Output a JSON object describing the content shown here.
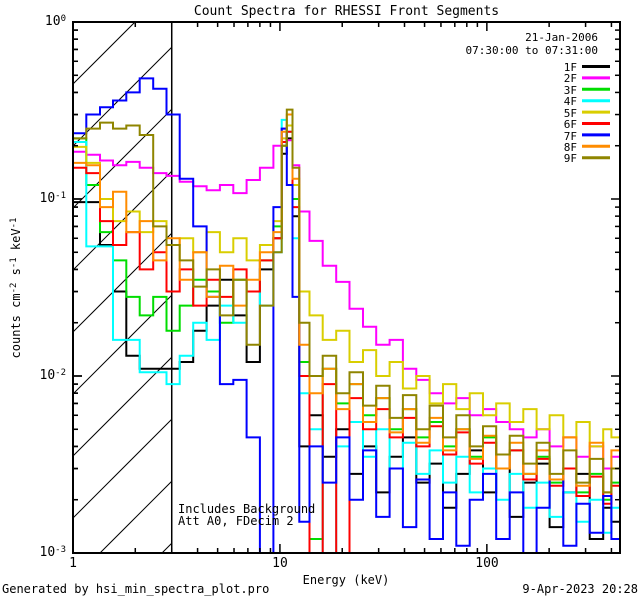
{
  "title": "Count Spectra for RHESSI Front Segments",
  "header": {
    "date": "21-Jan-2006",
    "time_range": "07:30:00 to 07:31:00"
  },
  "legend": {
    "entries": [
      {
        "label": "1F"
      },
      {
        "label": "2F"
      },
      {
        "label": "3F"
      },
      {
        "label": "4F"
      },
      {
        "label": "5F"
      },
      {
        "label": "6F"
      },
      {
        "label": "7F"
      },
      {
        "label": "8F"
      },
      {
        "label": "9F"
      }
    ]
  },
  "axes": {
    "x": {
      "label": "Energy (keV)",
      "scale": "log",
      "range": [
        1,
        440
      ],
      "ticks": [
        "1",
        "10",
        "100"
      ]
    },
    "y": {
      "scale": "log",
      "range": [
        0.001,
        1
      ],
      "label_parts": [
        {
          "t": "counts cm"
        },
        {
          "t": "-2",
          "sup": true
        },
        {
          "t": " s"
        },
        {
          "t": "-1",
          "sup": true
        },
        {
          "t": " keV"
        },
        {
          "t": "-1",
          "sup": true
        }
      ],
      "ticks": [
        {
          "base": "10",
          "exp": "0",
          "value": 1
        },
        {
          "base": "10",
          "exp": "-1",
          "value": 0.1
        },
        {
          "base": "10",
          "exp": "-2",
          "value": 0.01
        },
        {
          "base": "10",
          "exp": "-3",
          "value": 0.001
        }
      ]
    }
  },
  "annotations": [
    "Includes Background",
    "Att A0, FDecim 2"
  ],
  "hatch_region": {
    "x_start": 1,
    "x_end": 3
  },
  "footer": {
    "left": "Generated by hsi_min_spectra_plot.pro",
    "right": "9-Apr-2023 20:28"
  },
  "chart_data": {
    "type": "line",
    "style": "histogram-step",
    "title": "Count Spectra for RHESSI Front Segments",
    "xlabel": "Energy (keV)",
    "ylabel": "counts cm^-2 s^-1 keV^-1",
    "xscale": "log",
    "yscale": "log",
    "xlim": [
      1,
      440
    ],
    "ylim": [
      0.001,
      1
    ],
    "legend_position": "top-right-inside",
    "x": [
      1.0,
      1.16,
      1.35,
      1.56,
      1.81,
      2.1,
      2.44,
      2.83,
      3.28,
      3.81,
      4.42,
      5.13,
      5.95,
      6.9,
      8.0,
      9.3,
      10.2,
      10.8,
      11.5,
      12.4,
      13.9,
      16.1,
      18.7,
      21.7,
      25.2,
      29.2,
      33.9,
      39.3,
      45.6,
      52.9,
      61.4,
      71.2,
      82.6,
      95.8,
      111,
      129,
      150,
      174,
      201,
      234,
      271,
      314,
      365,
      400
    ],
    "series": [
      {
        "name": "1F",
        "color": "#000000",
        "values": [
          0.096,
          0.096,
          0.055,
          0.03,
          0.013,
          0.011,
          0.011,
          0.011,
          0.012,
          0.018,
          0.025,
          0.035,
          0.022,
          0.012,
          0.04,
          0.06,
          0.18,
          0.22,
          0.08,
          0.004,
          0.006,
          0.0035,
          0.005,
          0.0028,
          0.004,
          0.0022,
          0.0035,
          0.0045,
          0.0025,
          0.0032,
          0.0018,
          0.0028,
          0.0038,
          0.0022,
          0.003,
          0.0016,
          0.0025,
          0.0032,
          0.0014,
          0.0022,
          0.0028,
          0.0012,
          0.0018,
          0.0015
        ]
      },
      {
        "name": "2F",
        "color": "#ff00ff",
        "values": [
          0.185,
          0.178,
          0.165,
          0.155,
          0.162,
          0.15,
          0.14,
          0.135,
          0.125,
          0.118,
          0.112,
          0.12,
          0.108,
          0.128,
          0.15,
          0.2,
          0.25,
          0.215,
          0.155,
          0.085,
          0.058,
          0.042,
          0.034,
          0.024,
          0.019,
          0.015,
          0.016,
          0.011,
          0.0095,
          0.008,
          0.007,
          0.0075,
          0.006,
          0.0065,
          0.0055,
          0.005,
          0.0045,
          0.005,
          0.004,
          0.0045,
          0.0035,
          0.004,
          0.003,
          0.0035
        ]
      },
      {
        "name": "3F",
        "color": "#00dd00",
        "values": [
          0.22,
          0.12,
          0.065,
          0.045,
          0.028,
          0.022,
          0.028,
          0.018,
          0.025,
          0.035,
          0.03,
          0.02,
          0.035,
          0.03,
          0.045,
          0.07,
          0.2,
          0.26,
          0.1,
          0.012,
          0.0012,
          0.011,
          0.007,
          0.009,
          0.006,
          0.0075,
          0.005,
          0.0065,
          0.0045,
          0.0055,
          0.004,
          0.005,
          0.0035,
          0.0045,
          0.003,
          0.0038,
          0.0028,
          0.0035,
          0.0025,
          0.003,
          0.0022,
          0.0028,
          0.002,
          0.0025
        ]
      },
      {
        "name": "4F",
        "color": "#00ffff",
        "values": [
          0.21,
          0.054,
          0.054,
          0.016,
          0.016,
          0.0105,
          0.0105,
          0.009,
          0.013,
          0.02,
          0.016,
          0.025,
          0.02,
          0.03,
          0.025,
          0.05,
          0.28,
          0.24,
          0.06,
          0.008,
          0.005,
          0.0009,
          0.004,
          0.0055,
          0.0035,
          0.005,
          0.003,
          0.0042,
          0.0028,
          0.0038,
          0.0025,
          0.0035,
          0.0022,
          0.003,
          0.002,
          0.0028,
          0.0018,
          0.0025,
          0.0016,
          0.0022,
          0.0015,
          0.002,
          0.0013,
          0.0018
        ]
      },
      {
        "name": "5F",
        "color": "#d9ce00",
        "values": [
          0.197,
          0.16,
          0.1,
          0.075,
          0.085,
          0.065,
          0.075,
          0.055,
          0.06,
          0.05,
          0.065,
          0.05,
          0.06,
          0.045,
          0.055,
          0.075,
          0.22,
          0.26,
          0.12,
          0.03,
          0.022,
          0.016,
          0.018,
          0.012,
          0.014,
          0.01,
          0.012,
          0.0085,
          0.01,
          0.007,
          0.009,
          0.0065,
          0.008,
          0.006,
          0.007,
          0.0055,
          0.0065,
          0.005,
          0.006,
          0.0045,
          0.0055,
          0.004,
          0.005,
          0.0045
        ]
      },
      {
        "name": "6F",
        "color": "#ff0000",
        "values": [
          0.15,
          0.14,
          0.075,
          0.055,
          0.065,
          0.04,
          0.05,
          0.03,
          0.04,
          0.025,
          0.035,
          0.028,
          0.04,
          0.03,
          0.045,
          0.06,
          0.21,
          0.24,
          0.09,
          0.01,
          0.0009,
          0.009,
          0.0008,
          0.0075,
          0.005,
          0.0065,
          0.0045,
          0.0058,
          0.004,
          0.0052,
          0.0036,
          0.0048,
          0.0032,
          0.0042,
          0.003,
          0.0038,
          0.0026,
          0.0034,
          0.0024,
          0.003,
          0.0021,
          0.0027,
          0.0019,
          0.0024
        ]
      },
      {
        "name": "7F",
        "color": "#0000ff",
        "values": [
          0.235,
          0.3,
          0.33,
          0.36,
          0.4,
          0.48,
          0.42,
          0.3,
          0.13,
          0.07,
          0.028,
          0.009,
          0.0095,
          0.0045,
          0.0008,
          0.09,
          0.25,
          0.12,
          0.028,
          0.0015,
          0.004,
          0.0025,
          0.0045,
          0.002,
          0.0038,
          0.0016,
          0.003,
          0.0014,
          0.0026,
          0.0012,
          0.0022,
          0.0011,
          0.002,
          0.0028,
          0.0012,
          0.0022,
          0.001,
          0.0018,
          0.0026,
          0.0011,
          0.0019,
          0.0013,
          0.0021,
          0.0012
        ]
      },
      {
        "name": "8F",
        "color": "#ff8c00",
        "values": [
          0.16,
          0.155,
          0.09,
          0.11,
          0.065,
          0.075,
          0.045,
          0.06,
          0.035,
          0.05,
          0.028,
          0.042,
          0.025,
          0.035,
          0.05,
          0.065,
          0.24,
          0.3,
          0.13,
          0.015,
          0.008,
          0.011,
          0.0065,
          0.009,
          0.0055,
          0.0075,
          0.0048,
          0.0065,
          0.0042,
          0.0058,
          0.0038,
          0.005,
          0.0034,
          0.0046,
          0.003,
          0.0042,
          0.0028,
          0.0038,
          0.0026,
          0.0045,
          0.0024,
          0.0042,
          0.0022,
          0.0038
        ]
      },
      {
        "name": "9F",
        "color": "#8f8500",
        "values": [
          0.22,
          0.25,
          0.27,
          0.25,
          0.26,
          0.23,
          0.07,
          0.055,
          0.045,
          0.032,
          0.04,
          0.022,
          0.035,
          0.015,
          0.025,
          0.05,
          0.2,
          0.32,
          0.15,
          0.02,
          0.01,
          0.013,
          0.008,
          0.0105,
          0.0068,
          0.0088,
          0.0058,
          0.0078,
          0.005,
          0.0068,
          0.0045,
          0.006,
          0.004,
          0.0052,
          0.0036,
          0.0046,
          0.0032,
          0.0042,
          0.0028,
          0.0038,
          0.0025,
          0.0034,
          0.0022,
          0.003
        ]
      }
    ]
  }
}
